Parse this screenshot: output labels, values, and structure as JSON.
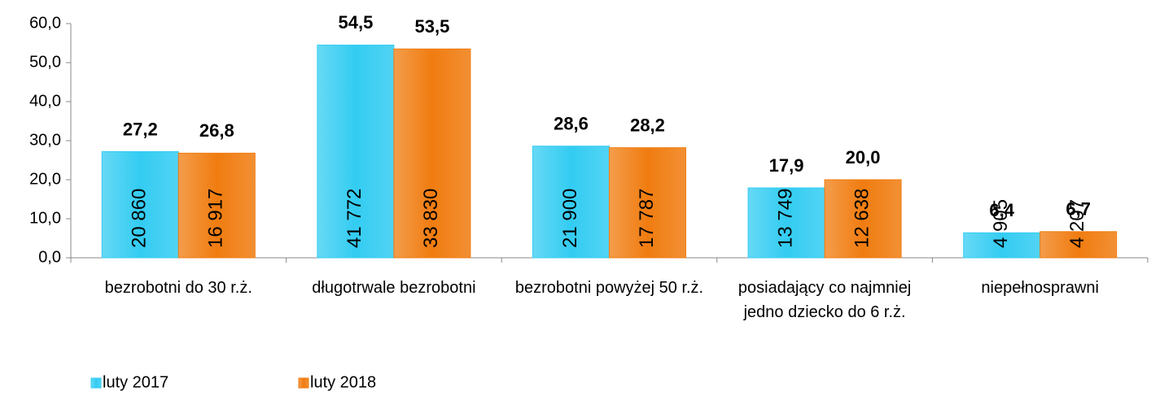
{
  "chart_data": {
    "type": "bar",
    "categories": [
      "bezrobotni do 30 r.ż.",
      "długotrwale bezrobotni",
      "bezrobotni powyżej 50 r.ż.",
      "posiadający co najmniej jedno dziecko do 6 r.ż.",
      "niepełnosprawni"
    ],
    "series": [
      {
        "name": "luty 2017",
        "color": "#33ccf2",
        "values": [
          27.2,
          54.5,
          28.6,
          17.9,
          6.4
        ],
        "value_labels": [
          "27,2",
          "54,5",
          "28,6",
          "17,9",
          "6,4"
        ],
        "counts": [
          20860,
          41772,
          21900,
          13749,
          4905
        ],
        "count_labels": [
          "20 860",
          "41 772",
          "21 900",
          "13 749",
          "4 905"
        ]
      },
      {
        "name": "luty 2018",
        "color": "#f07c10",
        "values": [
          26.8,
          53.5,
          28.2,
          20.0,
          6.7
        ],
        "value_labels": [
          "26,8",
          "53,5",
          "28,2",
          "20,0",
          "6,7"
        ],
        "counts": [
          16917,
          33830,
          17787,
          12638,
          4207
        ],
        "count_labels": [
          "16 917",
          "33 830",
          "17 787",
          "12 638",
          "4 207"
        ]
      }
    ],
    "ylim": [
      0,
      60
    ],
    "yticks": [
      {
        "value": 0,
        "label": "0,0"
      },
      {
        "value": 10,
        "label": "10,0"
      },
      {
        "value": 20,
        "label": "20,0"
      },
      {
        "value": 30,
        "label": "30,0"
      },
      {
        "value": 40,
        "label": "40,0"
      },
      {
        "value": 50,
        "label": "50,0"
      },
      {
        "value": 60,
        "label": "60,0"
      }
    ],
    "legend": "bottom-left"
  }
}
